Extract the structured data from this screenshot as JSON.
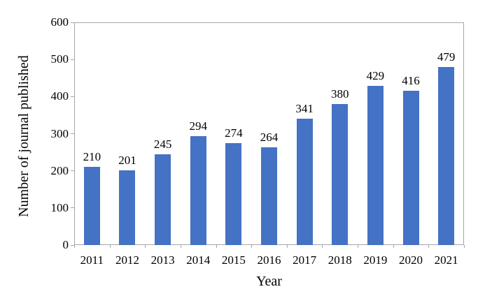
{
  "chart_data": {
    "type": "bar",
    "title": "",
    "xlabel": "Year",
    "ylabel": "Number of journal published",
    "categories": [
      "2011",
      "2012",
      "2013",
      "2014",
      "2015",
      "2016",
      "2017",
      "2018",
      "2019",
      "2020",
      "2021"
    ],
    "values": [
      210,
      201,
      245,
      294,
      274,
      264,
      341,
      380,
      429,
      416,
      479
    ],
    "ylim": [
      0,
      600
    ],
    "ytick_step": 100,
    "ytick_labels": [
      "0",
      "100",
      "200",
      "300",
      "400",
      "500",
      "600"
    ],
    "grid": false,
    "legend": null,
    "data_labels_shown": true,
    "bar_color": "#4472C4",
    "axis_line_color": "#A6A6A6",
    "text_color": "#000000"
  }
}
